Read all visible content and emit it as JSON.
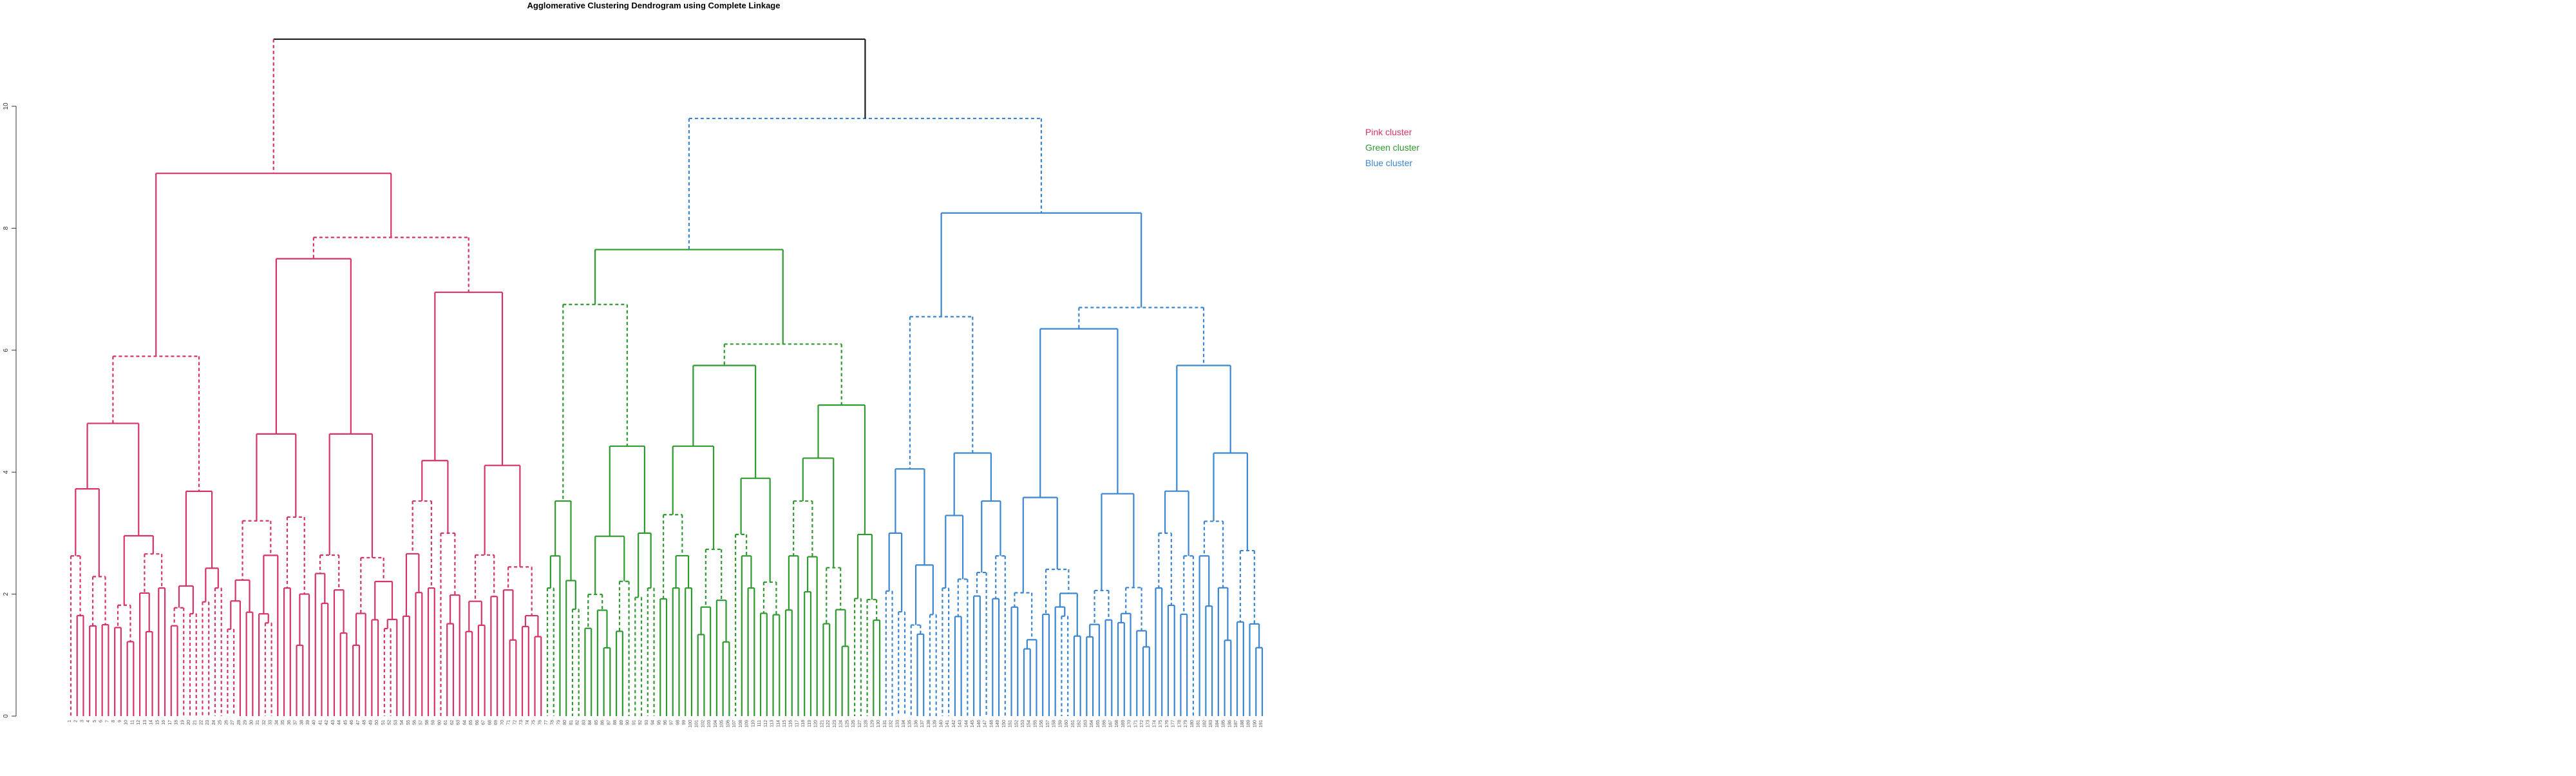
{
  "colors": {
    "root": "#1a1a1a",
    "pink": "#d6336c",
    "green": "#2f9a2f",
    "blue": "#3b86d1",
    "axis": "#333333",
    "leaf_label": "#555555"
  },
  "chart_data": {
    "type": "dendrogram",
    "title": "Agglomerative Clustering Dendrogram using Complete Linkage",
    "xlabel": "",
    "ylabel": "",
    "ylim": [
      0,
      11.5
    ],
    "yticks": [
      0,
      2,
      4,
      6,
      8,
      10
    ],
    "ytick_labels": [
      "0",
      "2",
      "4",
      "6",
      "8",
      "10"
    ],
    "clusters": [
      {
        "name": "pink",
        "color_key": "pink",
        "leaf_range": [
          0,
          75
        ],
        "merge_height": 8.9,
        "sub_heights": [
          5.9,
          7.5,
          6.95
        ],
        "label_text": "Pink cluster"
      },
      {
        "name": "green",
        "color_key": "green",
        "leaf_range": [
          76,
          129
        ],
        "merge_height": 7.65,
        "sub_heights": [
          6.75,
          5.75,
          5.1
        ],
        "label_text": "Green cluster"
      },
      {
        "name": "blue",
        "color_key": "blue",
        "leaf_range": [
          130,
          190
        ],
        "merge_height": 8.25,
        "sub_heights": [
          6.55,
          6.35,
          5.75
        ],
        "label_text": "Blue cluster"
      }
    ],
    "top_merges": [
      {
        "left": "pink",
        "right": "green+blue",
        "height": 11.1
      },
      {
        "left": "green",
        "right": "blue",
        "height": 9.8
      }
    ],
    "leaf_count": 191
  }
}
